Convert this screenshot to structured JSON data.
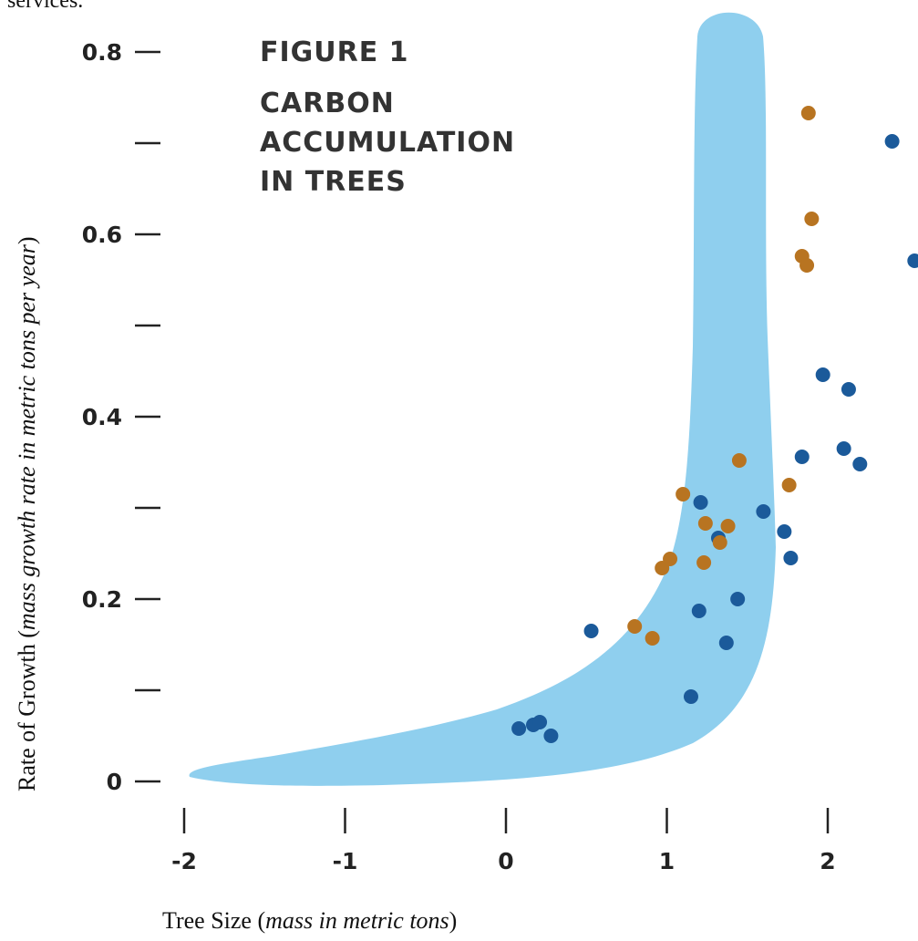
{
  "top_text": "services.",
  "chart_data": {
    "type": "scatter",
    "title_lines": [
      "FIGURE 1",
      "CARBON",
      "ACCUMULATION",
      "IN TREES"
    ],
    "xlabel": {
      "main": "Tree Size",
      "italic": "mass in metric tons"
    },
    "ylabel": {
      "main": "Rate of Growth",
      "italic": "mass growth rate in metric tons per year"
    },
    "xlim": [
      -2,
      2.6
    ],
    "ylim": [
      0,
      0.84
    ],
    "x_ticks": [
      -2,
      -1,
      0,
      1,
      2
    ],
    "x_tick_labels": [
      "-2",
      "-1",
      "0",
      "1",
      "2"
    ],
    "y_ticks": [
      0,
      0.1,
      0.2,
      0.3,
      0.4,
      0.5,
      0.6,
      0.7,
      0.8
    ],
    "y_tick_labels": [
      "0",
      "",
      "0.2",
      "",
      "0.4",
      "",
      "0.6",
      "",
      "0.8"
    ],
    "band_color": "#8fcfee",
    "series": [
      {
        "color": "#1b5a9a",
        "points": [
          [
            0.08,
            0.058
          ],
          [
            0.17,
            0.062
          ],
          [
            0.21,
            0.065
          ],
          [
            0.28,
            0.05
          ],
          [
            0.53,
            0.165
          ],
          [
            1.15,
            0.093
          ],
          [
            1.2,
            0.187
          ],
          [
            1.21,
            0.306
          ],
          [
            1.32,
            0.267
          ],
          [
            1.37,
            0.152
          ],
          [
            1.44,
            0.2
          ],
          [
            1.6,
            0.296
          ],
          [
            1.73,
            0.274
          ],
          [
            1.77,
            0.245
          ],
          [
            1.84,
            0.356
          ],
          [
            1.97,
            0.446
          ],
          [
            2.1,
            0.365
          ],
          [
            2.13,
            0.43
          ],
          [
            2.2,
            0.348
          ],
          [
            2.4,
            0.702
          ],
          [
            2.54,
            0.571
          ]
        ]
      },
      {
        "color": "#b87421",
        "points": [
          [
            0.8,
            0.17
          ],
          [
            0.91,
            0.157
          ],
          [
            0.97,
            0.234
          ],
          [
            1.02,
            0.244
          ],
          [
            1.1,
            0.315
          ],
          [
            1.23,
            0.24
          ],
          [
            1.24,
            0.283
          ],
          [
            1.33,
            0.262
          ],
          [
            1.38,
            0.28
          ],
          [
            1.45,
            0.352
          ],
          [
            1.76,
            0.325
          ],
          [
            1.84,
            0.576
          ],
          [
            1.87,
            0.566
          ],
          [
            1.88,
            0.733
          ],
          [
            1.9,
            0.617
          ]
        ]
      }
    ]
  }
}
